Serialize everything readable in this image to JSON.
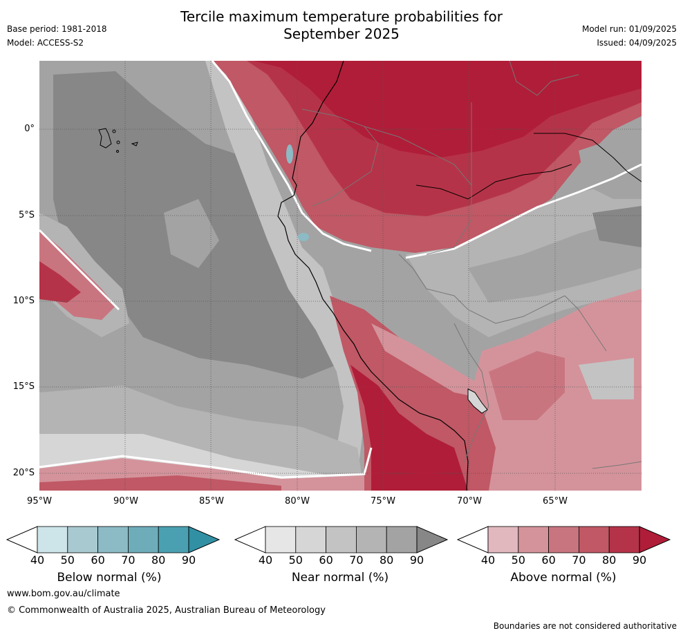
{
  "header": {
    "title_line1": "Tercile maximum temperature probabilities for",
    "title_line2": "September 2025",
    "base_period": "Base period: 1981-2018",
    "model": "Model: ACCESS-S2",
    "model_run": "Model run: 01/09/2025",
    "issued": "Issued: 04/09/2025"
  },
  "map": {
    "lat_labels": [
      "0°",
      "5°S",
      "10°S",
      "15°S",
      "20°S"
    ],
    "lon_labels": [
      "95°W",
      "90°W",
      "85°W",
      "80°W",
      "75°W",
      "70°W",
      "65°W"
    ],
    "extent": {
      "lon_min": -95,
      "lon_max": -60,
      "lat_min": -21,
      "lat_max": 4
    },
    "gridlines": true
  },
  "colorbars": [
    {
      "title": "Below normal (%)",
      "ticks": [
        "40",
        "50",
        "60",
        "70",
        "80",
        "90"
      ],
      "colors": [
        "#ffffff",
        "#cde4e9",
        "#a8c9cf",
        "#8cbac5",
        "#6eacb9",
        "#4aa0b0",
        "#3190a4"
      ]
    },
    {
      "title": "Near normal (%)",
      "ticks": [
        "40",
        "50",
        "60",
        "70",
        "80",
        "90"
      ],
      "colors": [
        "#ffffff",
        "#e6e6e6",
        "#d6d6d6",
        "#c3c3c3",
        "#b4b4b4",
        "#a3a3a3",
        "#878787"
      ]
    },
    {
      "title": "Above normal (%)",
      "ticks": [
        "40",
        "50",
        "60",
        "70",
        "80",
        "90"
      ],
      "colors": [
        "#ffffff",
        "#e0b8bd",
        "#d4939b",
        "#c97580",
        "#c05865",
        "#b53348",
        "#b01d38"
      ]
    }
  ],
  "footer": {
    "url": "www.bom.gov.au/climate",
    "copyright": "© Commonwealth of Australia 2025, Australian Bureau of Meteorology",
    "note": "Boundaries are not considered authoritative"
  }
}
